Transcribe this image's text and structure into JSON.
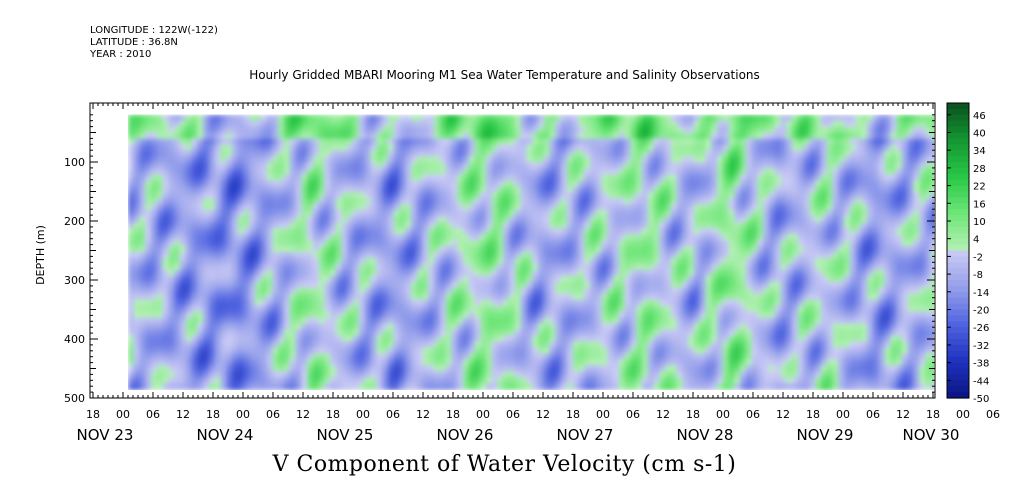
{
  "header": {
    "longitude": "LONGITUDE : 122W(-122)",
    "latitude": "LATITUDE : 36.8N",
    "year": "YEAR : 2010"
  },
  "chart_data": {
    "type": "heatmap",
    "title": "Hourly Gridded MBARI Mooring M1 Sea Water Temperature and Salinity Observations",
    "xlabel": "V Component of Water Velocity (cm s-1)",
    "ylabel": "DEPTH (m)",
    "ylim": [
      500,
      0
    ],
    "y_ticks": [
      100,
      200,
      300,
      400,
      500
    ],
    "x_hour_ticks": [
      "18",
      "00",
      "06",
      "12",
      "18",
      "00",
      "06",
      "12",
      "18",
      "00",
      "06",
      "12",
      "18",
      "00",
      "06",
      "12",
      "18",
      "00",
      "06",
      "12",
      "18",
      "00",
      "06",
      "12",
      "18",
      "00",
      "06",
      "12",
      "18",
      "00",
      "06",
      "12",
      "18"
    ],
    "x_day_labels": [
      "NOV 23",
      "NOV 24",
      "NOV 25",
      "NOV 26",
      "NOV 27",
      "NOV 28",
      "NOV 29",
      "NOV 30"
    ],
    "data_depth_range": [
      20,
      485
    ],
    "colorbar": {
      "levels": [
        46,
        40,
        34,
        28,
        22,
        16,
        10,
        4,
        -2,
        -8,
        -14,
        -20,
        -26,
        -32,
        -38,
        -44,
        -50
      ],
      "range": [
        -50,
        50
      ]
    },
    "time_bands": [
      {
        "day": 0.0,
        "v": -6
      },
      {
        "day": 0.5,
        "v": -12
      },
      {
        "day": 0.9,
        "v": -16
      },
      {
        "day": 1.2,
        "v": -8
      },
      {
        "day": 1.5,
        "v": 2
      },
      {
        "day": 1.8,
        "v": -6
      },
      {
        "day": 2.2,
        "v": -12
      },
      {
        "day": 2.6,
        "v": -4
      },
      {
        "day": 3.0,
        "v": 4
      },
      {
        "day": 3.4,
        "v": -10
      },
      {
        "day": 3.9,
        "v": -4
      },
      {
        "day": 4.3,
        "v": 2
      },
      {
        "day": 4.7,
        "v": -8
      },
      {
        "day": 5.0,
        "v": 6
      },
      {
        "day": 5.4,
        "v": -10
      },
      {
        "day": 5.8,
        "v": -2
      },
      {
        "day": 6.2,
        "v": -12
      },
      {
        "day": 6.6,
        "v": -6
      },
      {
        "day": 7.0,
        "v": 2
      },
      {
        "day": 7.4,
        "v": -8
      },
      {
        "day": 7.7,
        "v": -4
      }
    ]
  }
}
